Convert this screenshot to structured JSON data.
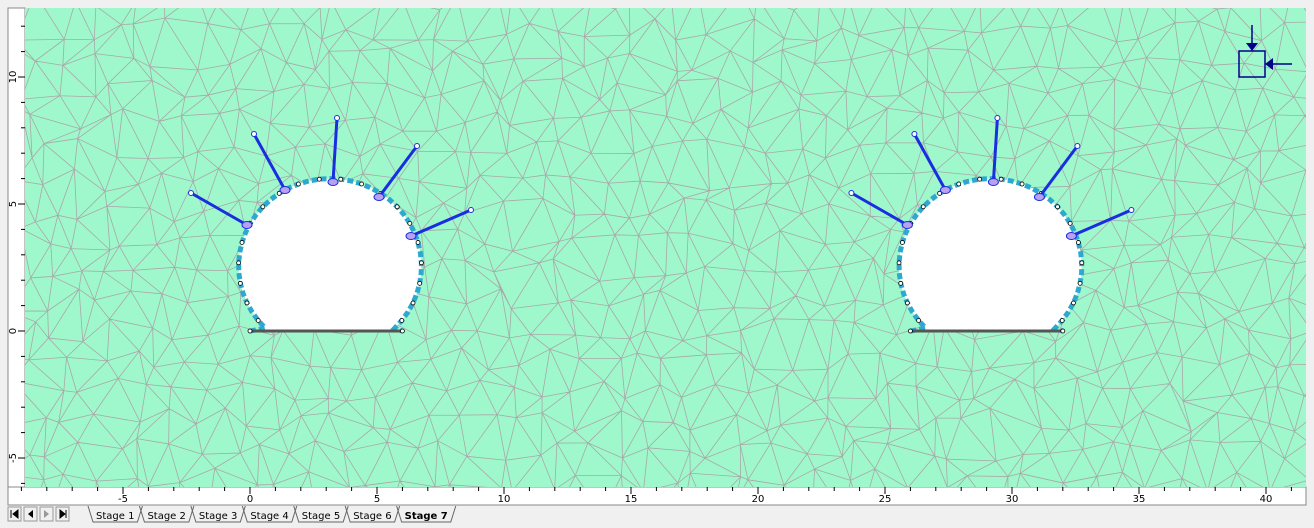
{
  "rulers": {
    "x_ticks": [
      -5,
      0,
      5,
      10,
      15,
      20,
      25,
      30,
      35,
      40
    ],
    "y_ticks": [
      10,
      5,
      0,
      -5
    ]
  },
  "tabs": [
    "Stage 1",
    "Stage 2",
    "Stage 3",
    "Stage 4",
    "Stage 5",
    "Stage 6",
    "Stage 7"
  ],
  "active_tab": 6
}
